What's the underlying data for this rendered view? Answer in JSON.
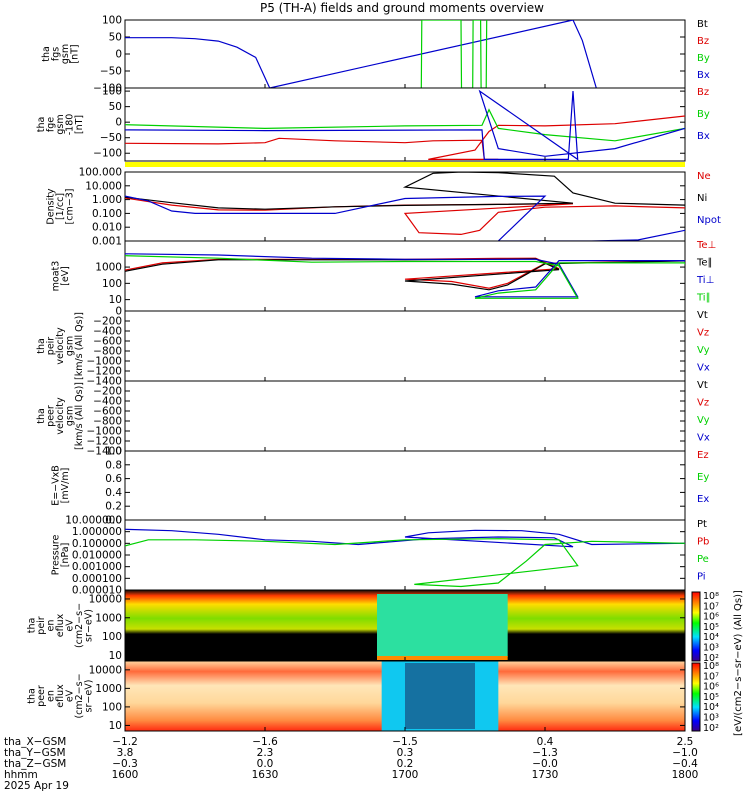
{
  "title": "P5 (TH-A) fields and ground moments overview",
  "colors": {
    "black": "#000000",
    "red": "#dd0000",
    "green": "#00d000",
    "blue": "#0000cc",
    "yellow": "#ffff00"
  },
  "chart_data": [
    {
      "type": "line",
      "panel": "fgs",
      "ylabel": [
        "tha",
        "fgs",
        "gsm",
        "[nT]"
      ],
      "ylim": [
        -100,
        100
      ],
      "yticks": [
        "100",
        "50",
        "0",
        "−50",
        "−100"
      ],
      "legend": [
        {
          "name": "Bt",
          "color": "#000000"
        },
        {
          "name": "Bz",
          "color": "#dd0000"
        },
        {
          "name": "By",
          "color": "#00d000"
        },
        {
          "name": "Bx",
          "color": "#0000cc"
        }
      ],
      "series": [
        {
          "name": "Bx",
          "x": [
            1600,
            1610,
            1615,
            1620,
            1624,
            1628,
            1631,
            1736,
            1738,
            1741
          ],
          "y": [
            48,
            48,
            45,
            38,
            20,
            -10,
            -100,
            100,
            40,
            -100
          ]
        },
        {
          "name": "By",
          "x": [
            1703.5,
            1703.6,
            1712,
            1712.1,
            1714.5,
            1714.6,
            1716.2,
            1716.3,
            1717.4,
            1717.5
          ],
          "y": [
            -100,
            100,
            100,
            -100,
            -100,
            100,
            100,
            -100,
            -100,
            100
          ]
        }
      ]
    },
    {
      "type": "line",
      "panel": "fge",
      "ylabel": [
        "tha",
        "fge",
        "gsm",
        "-180",
        "[nT]"
      ],
      "ylim": [
        -125,
        110
      ],
      "yticks": [
        "100",
        "50",
        "0",
        "−50",
        "−100"
      ],
      "legend": [
        {
          "name": "Bz",
          "color": "#dd0000"
        },
        {
          "name": "By",
          "color": "#00d000"
        },
        {
          "name": "Bx",
          "color": "#0000cc"
        }
      ],
      "series": [
        {
          "name": "Bz",
          "x": [
            1600,
            1620,
            1630,
            1633,
            1645,
            1660,
            1666,
            1676.5,
            1677,
            1680,
            1705,
            1715,
            1718,
            1720,
            1730,
            1745,
            1760,
            1770,
            1780,
            1790,
            1800
          ],
          "y": [
            -68,
            -70,
            -66,
            -52,
            -60,
            -66,
            -60,
            -58,
            -120,
            -120,
            -120,
            -90,
            -30,
            -10,
            -12,
            -5,
            20,
            55,
            40,
            15,
            18
          ]
        },
        {
          "name": "By",
          "x": [
            1600,
            1630,
            1660,
            1676.5,
            1718,
            1720,
            1730,
            1745,
            1760,
            1780,
            1800
          ],
          "y": [
            -8,
            -20,
            -12,
            -10,
            40,
            -20,
            -40,
            -60,
            -20,
            -25,
            -12
          ]
        },
        {
          "name": "Bx",
          "x": [
            1600,
            1630,
            1676.5,
            1677,
            1695,
            1696,
            1697,
            1716,
            1720,
            1730,
            1745,
            1760,
            1780,
            1800
          ],
          "y": [
            -25,
            -27,
            -25,
            -120,
            -120,
            100,
            -120,
            100,
            -85,
            -110,
            -85,
            -20,
            -18,
            -15
          ]
        }
      ]
    },
    {
      "type": "line",
      "panel": "density",
      "ylabel": [
        "Density",
        "[1/cc]",
        "[cm−3]"
      ],
      "scale": "log",
      "ylim": [
        0.001,
        100
      ],
      "yticks": [
        "100.000",
        "10.000",
        "1.000",
        "0.100",
        "0.010",
        "0.001"
      ],
      "legend": [
        {
          "name": "Ne",
          "color": "#dd0000"
        },
        {
          "name": "Ni",
          "color": "#000000"
        },
        {
          "name": "Npot",
          "color": "#0000cc"
        }
      ],
      "series": [
        {
          "name": "Ne",
          "x": [
            1600,
            1610,
            1620,
            1630,
            1645,
            1660,
            1680,
            1696,
            1700,
            1703,
            1712,
            1716,
            1720,
            1730,
            1745,
            1760,
            1780,
            1800
          ],
          "y": [
            1.3,
            0.4,
            0.18,
            0.17,
            0.3,
            0.4,
            0.45,
            0.5,
            0.1,
            0.004,
            0.003,
            0.006,
            0.12,
            0.28,
            0.35,
            0.25,
            0.18,
            0.15
          ]
        },
        {
          "name": "Ni",
          "x": [
            1600,
            1610,
            1620,
            1630,
            1645,
            1660,
            1680,
            1696,
            1700,
            1706,
            1712,
            1720,
            1732,
            1736,
            1745,
            1760,
            1780,
            1800
          ],
          "y": [
            1.5,
            0.6,
            0.25,
            0.2,
            0.3,
            0.38,
            0.45,
            0.55,
            8,
            80,
            100,
            90,
            50,
            3,
            0.55,
            0.4,
            0.3,
            0.2
          ]
        },
        {
          "name": "Npot",
          "x": [
            1600,
            1605,
            1610,
            1615,
            1620,
            1630,
            1645,
            1660,
            1680,
            1690,
            1720,
            1740,
            1750,
            1760,
            1780,
            1800
          ],
          "y": [
            1.8,
            0.8,
            0.15,
            0.1,
            0.1,
            0.1,
            0.1,
            1.2,
            1.7,
            1.8,
            0.001,
            0.001,
            0.0012,
            0.006,
            0.04,
            0.06
          ]
        }
      ]
    },
    {
      "type": "line",
      "panel": "temperature",
      "ylabel": [
        "moat3",
        "[eV]"
      ],
      "scale": "log",
      "ylim": [
        2,
        40000
      ],
      "yticks": [
        "1000",
        "100",
        "10"
      ],
      "legend": [
        {
          "name": "Te⊥",
          "color": "#dd0000"
        },
        {
          "name": "Te∥",
          "color": "#000000"
        },
        {
          "name": "Ti⊥",
          "color": "#0000cc"
        },
        {
          "name": "Ti∥",
          "color": "#00d000"
        }
      ],
      "series": [
        {
          "name": "Te⊥",
          "x": [
            1600,
            1608,
            1620,
            1640,
            1660,
            1680,
            1688,
            1693,
            1700,
            1710,
            1718,
            1722,
            1730,
            1760,
            1800
          ],
          "y": [
            650,
            1800,
            3000,
            3000,
            3000,
            3400,
            3500,
            800,
            180,
            130,
            50,
            100,
            1700,
            2500,
            2500
          ]
        },
        {
          "name": "Te∥",
          "x": [
            1600,
            1608,
            1620,
            1640,
            1660,
            1680,
            1688,
            1693,
            1700,
            1710,
            1718,
            1722,
            1730,
            1760,
            1800
          ],
          "y": [
            550,
            1500,
            2800,
            2800,
            2800,
            3000,
            3200,
            700,
            140,
            90,
            40,
            80,
            1600,
            2400,
            2400
          ]
        },
        {
          "name": "Ti⊥",
          "x": [
            1600,
            1620,
            1640,
            1660,
            1680,
            1688,
            1693,
            1697,
            1715,
            1720,
            1728,
            1733,
            1760,
            1800
          ],
          "y": [
            6500,
            5500,
            3500,
            3000,
            3000,
            3000,
            1500,
            15,
            15,
            35,
            60,
            2500,
            2500,
            2200
          ]
        },
        {
          "name": "Ti∥",
          "x": [
            1600,
            1620,
            1640,
            1660,
            1680,
            1688,
            1693,
            1697,
            1715,
            1720,
            1728,
            1733,
            1760,
            1800
          ],
          "y": [
            5000,
            3500,
            2000,
            2200,
            2200,
            2200,
            1200,
            12,
            12,
            25,
            40,
            1800,
            1800,
            1500
          ]
        }
      ]
    },
    {
      "type": "line",
      "panel": "peir velocity",
      "ylabel": [
        "tha",
        "peir",
        "velocity",
        "gsm",
        "[km/s (All Qs)]"
      ],
      "ylim": [
        -1400,
        0
      ],
      "yticks": [
        "0",
        "−200",
        "−400",
        "−600",
        "−800",
        "−1000",
        "−1200",
        "−1400"
      ],
      "legend": [
        {
          "name": "Vt",
          "color": "#000000"
        },
        {
          "name": "Vz",
          "color": "#dd0000"
        },
        {
          "name": "Vy",
          "color": "#00d000"
        },
        {
          "name": "Vx",
          "color": "#0000cc"
        }
      ],
      "series": []
    },
    {
      "type": "line",
      "panel": "peer velocity",
      "ylabel": [
        "tha",
        "peer",
        "velocity",
        "gsm",
        "[km/s (All Qs)]"
      ],
      "ylim": [
        -1400,
        0
      ],
      "yticks": [
        "−200",
        "−400",
        "−600",
        "−800",
        "−1000",
        "−1200",
        "−1400"
      ],
      "legend": [
        {
          "name": "Vt",
          "color": "#000000"
        },
        {
          "name": "Vz",
          "color": "#dd0000"
        },
        {
          "name": "Vy",
          "color": "#00d000"
        },
        {
          "name": "Vx",
          "color": "#0000cc"
        }
      ],
      "series": []
    },
    {
      "type": "line",
      "panel": "E field",
      "ylabel": [
        "E=−VxB",
        "[mV/m]"
      ],
      "ylim": [
        0,
        1
      ],
      "yticks": [
        "1.0",
        "0.8",
        "0.6",
        "0.4",
        "0.2",
        "0.0"
      ],
      "legend": [
        {
          "name": "Ez",
          "color": "#dd0000"
        },
        {
          "name": "Ey",
          "color": "#00d000"
        },
        {
          "name": "Ex",
          "color": "#0000cc"
        }
      ],
      "series": []
    },
    {
      "type": "line",
      "panel": "pressure",
      "ylabel": [
        "Pressure",
        "[nPa]"
      ],
      "scale": "log",
      "ylim": [
        1e-05,
        10
      ],
      "yticks": [
        "10.000000",
        "1.000000",
        "0.100000",
        "0.010000",
        "0.001000",
        "0.000100",
        "0.000010"
      ],
      "legend": [
        {
          "name": "Pt",
          "color": "#000000"
        },
        {
          "name": "Pb",
          "color": "#dd0000"
        },
        {
          "name": "Pe",
          "color": "#00d000"
        },
        {
          "name": "Pi",
          "color": "#0000cc"
        }
      ],
      "series": [
        {
          "name": "Pi",
          "x": [
            1600,
            1610,
            1620,
            1630,
            1640,
            1650,
            1665,
            1680,
            1692,
            1696,
            1700,
            1705,
            1715,
            1725,
            1733,
            1740,
            1760,
            1780,
            1800
          ],
          "y": [
            1.6,
            1.2,
            0.6,
            0.2,
            0.15,
            0.08,
            0.25,
            0.35,
            0.3,
            0.05,
            0.35,
            0.8,
            1.3,
            1.2,
            0.6,
            0.08,
            0.1,
            0.07,
            0.06
          ]
        },
        {
          "name": "Pe",
          "x": [
            1600,
            1605,
            1615,
            1630,
            1645,
            1660,
            1680,
            1693,
            1697,
            1702,
            1712,
            1720,
            1726,
            1730,
            1740,
            1760,
            1780,
            1800
          ],
          "y": [
            0.06,
            0.2,
            0.2,
            0.15,
            0.08,
            0.2,
            0.25,
            0.2,
            0.0012,
            3e-05,
            2e-05,
            4e-05,
            0.003,
            0.08,
            0.15,
            0.1,
            0.06,
            0.05
          ]
        }
      ]
    },
    {
      "type": "heatmap",
      "panel": "peir en eflux",
      "ylabel": [
        "tha",
        "peir",
        "en",
        "eflux",
        "eV",
        "(cm2−s−",
        "sr−eV)"
      ],
      "scale": "log",
      "ylim": [
        5,
        30000
      ],
      "yticks": [
        "10000",
        "1000",
        "100",
        "10"
      ]
    },
    {
      "type": "heatmap",
      "panel": "peer en eflux",
      "ylabel": [
        "tha",
        "peer",
        "en",
        "eflux",
        "eV",
        "(cm2−s−",
        "sr−eV)"
      ],
      "scale": "log",
      "ylim": [
        5,
        30000
      ],
      "yticks": [
        "10000",
        "1000",
        "100",
        "10"
      ]
    }
  ],
  "colorbar": {
    "label": "[eV/(cm2−s−sr−eV) (All Qs)]",
    "ticks_top": [
      "10⁸",
      "10⁷",
      "10⁶",
      "10⁵",
      "10⁴",
      "10³",
      "10²"
    ],
    "ticks_bottom": [
      "10⁸",
      "10⁷",
      "10⁶",
      "10⁵",
      "10⁴",
      "10³",
      "10²"
    ]
  },
  "xaxis": {
    "range": [
      1600,
      1800
    ],
    "tick_positions": [
      1600,
      1630,
      1700,
      1730,
      1800
    ],
    "rows": [
      {
        "label": "tha_X−GSM",
        "values": [
          "−1.2",
          "−1.6",
          "−1.5",
          "0.4",
          "2.5"
        ]
      },
      {
        "label": "tha_Y−GSM",
        "values": [
          "3.8",
          "2.3",
          "0.3",
          "−1.3",
          "−1.0"
        ]
      },
      {
        "label": "tha_Z−GSM",
        "values": [
          "−0.3",
          "0.0",
          "0.2",
          "−0.0",
          "−0.4"
        ]
      },
      {
        "label": "hhmm",
        "values": [
          "1600",
          "1630",
          "1700",
          "1730",
          "1800"
        ]
      }
    ],
    "date": "2025 Apr 19"
  }
}
